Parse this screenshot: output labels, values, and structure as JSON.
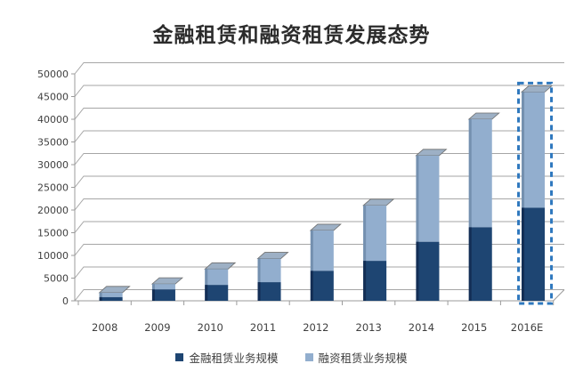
{
  "page": {
    "background": "#ffffff"
  },
  "chart_data": {
    "type": "bar",
    "variant": "stacked-3d-column",
    "title": "金融租赁和融资租赁发展态势",
    "categories": [
      "2008",
      "2009",
      "2010",
      "2011",
      "2012",
      "2013",
      "2014",
      "2015",
      "2016E"
    ],
    "series": [
      {
        "name": "金融租赁业务规模",
        "color": "#1e4572",
        "side_color": "#132e55",
        "values": [
          800,
          2500,
          3500,
          4100,
          6600,
          8800,
          13000,
          16200,
          20500
        ]
      },
      {
        "name": "融资租赁业务规模",
        "color": "#92aece",
        "side_color": "#7490af",
        "values": [
          1000,
          1200,
          3500,
          5200,
          8900,
          12200,
          19000,
          23800,
          25500
        ]
      }
    ],
    "stacked_totals": [
      1800,
      3700,
      7000,
      9300,
      15500,
      21000,
      32000,
      40000,
      46000
    ],
    "ylim": [
      0,
      50000
    ],
    "ytick_step": 5000,
    "ytick_labels": [
      "0",
      "5000",
      "10000",
      "15000",
      "20000",
      "25000",
      "30000",
      "35000",
      "40000",
      "45000",
      "50000"
    ],
    "xlabel": "",
    "ylabel": "",
    "grid": true,
    "legend_position": "bottom",
    "forecast_category": "2016E",
    "forecast_outline_color": "#2e78be",
    "bar_top_color": "#9db0c5",
    "bar_top_edge_color": "#6e6e6e",
    "gridline_color": "#a6a6a6",
    "axis_color": "#9b9b9b",
    "axis_text_color": "#3f3f3f"
  }
}
